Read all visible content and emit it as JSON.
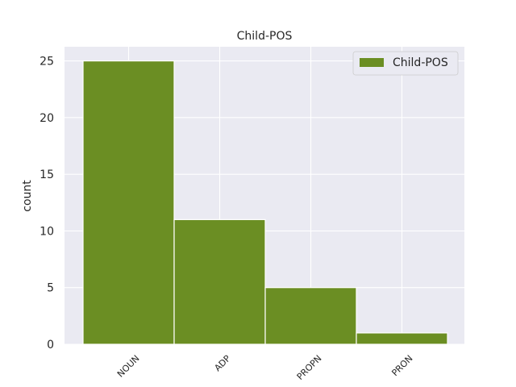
{
  "chart_data": {
    "type": "bar",
    "title": "Child-POS",
    "xlabel": "",
    "ylabel": "count",
    "categories": [
      "NOUN",
      "ADP",
      "PROPN",
      "PRON"
    ],
    "series": [
      {
        "name": "Child-POS",
        "values": [
          25,
          11,
          5,
          1
        ]
      }
    ],
    "ylim": [
      0,
      26.25
    ],
    "yticks": [
      0,
      5,
      10,
      15,
      20,
      25
    ],
    "grid": true,
    "legend_position": "top-right",
    "colors": {
      "bar": "#6b8e23",
      "plot_background": "#eaeaf2",
      "grid": "#ffffff"
    }
  }
}
